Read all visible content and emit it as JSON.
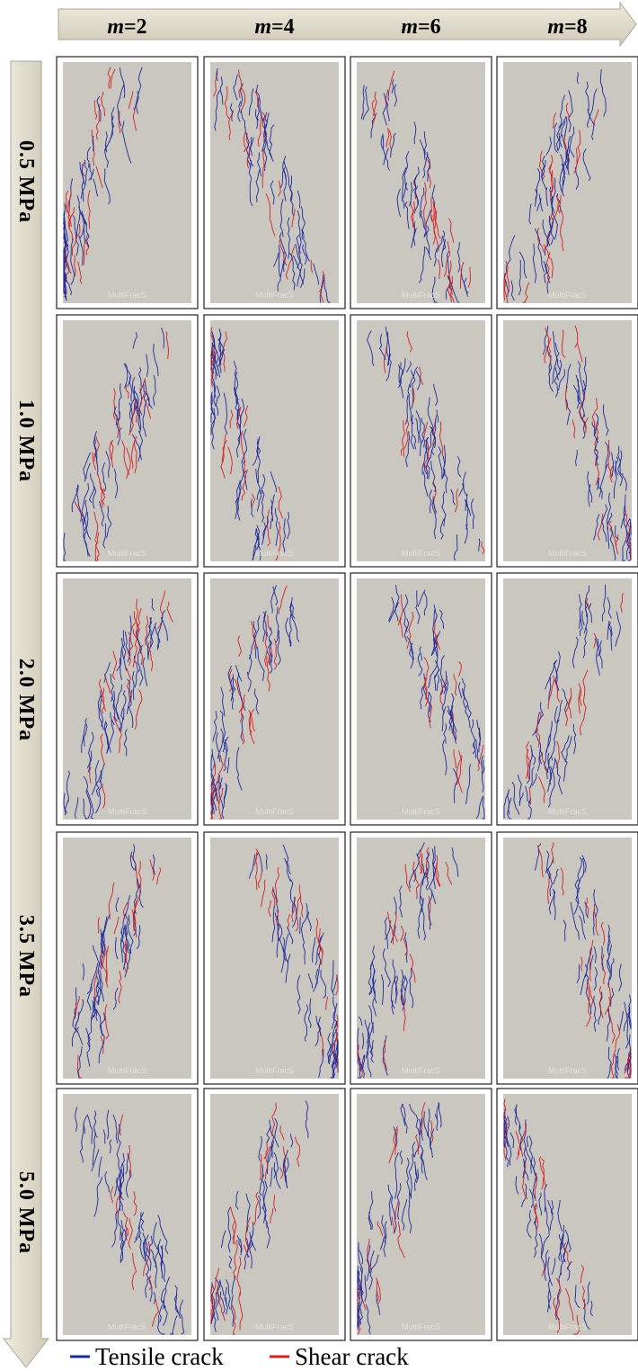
{
  "figure": {
    "columns": [
      {
        "symbol": "m",
        "value": "=2"
      },
      {
        "symbol": "m",
        "value": "=4"
      },
      {
        "symbol": "m",
        "value": "=6"
      },
      {
        "symbol": "m",
        "value": "=8"
      }
    ],
    "rows": [
      "0.5 MPa",
      "1.0 MPa",
      "2.0 MPa",
      "3.5 MPa",
      "5.0 MPa"
    ],
    "watermark": "MultiFracS",
    "legend": [
      {
        "label": "Tensile crack",
        "color": "#1f2a9a"
      },
      {
        "label": "Shear crack",
        "color": "#d42020"
      }
    ]
  }
}
